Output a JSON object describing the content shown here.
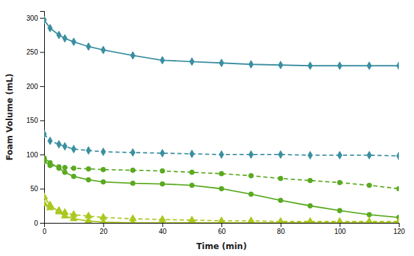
{
  "chart_data": {
    "type": "line",
    "xlabel": "Time (min)",
    "ylabel": "Foam Volume (mL)",
    "x": [
      0,
      2,
      5,
      7,
      10,
      15,
      20,
      30,
      40,
      50,
      60,
      70,
      80,
      90,
      100,
      110,
      120
    ],
    "series": [
      {
        "color": "#3a8fa0",
        "marker": "diamond",
        "line_style": "solid",
        "values": [
          297,
          285,
          275,
          270,
          265,
          258,
          253,
          245,
          238,
          236,
          234,
          232,
          231,
          230,
          230,
          230,
          230
        ]
      },
      {
        "color": "#3a8fa0",
        "marker": "diamond",
        "line_style": "dashed",
        "values": [
          130,
          120,
          115,
          112,
          108,
          106,
          104,
          103,
          102,
          101,
          100,
          100,
          100,
          99,
          99,
          99,
          98
        ]
      },
      {
        "color": "#5aaa20",
        "marker": "circle",
        "line_style": "solid",
        "values": [
          95,
          88,
          80,
          74,
          68,
          63,
          60,
          58,
          57,
          55,
          50,
          42,
          33,
          25,
          18,
          12,
          8
        ]
      },
      {
        "color": "#5aaa20",
        "marker": "circle",
        "line_style": "dashed",
        "values": [
          90,
          84,
          82,
          81,
          80,
          79,
          78,
          77,
          76,
          74,
          72,
          69,
          65,
          62,
          59,
          55,
          50
        ]
      },
      {
        "color": "#aac820",
        "marker": "triangle",
        "line_style": "solid",
        "values": [
          38,
          26,
          16,
          10,
          6,
          3,
          1,
          0,
          0,
          0,
          0,
          0,
          0,
          0,
          0,
          0,
          0
        ]
      },
      {
        "color": "#aac820",
        "marker": "triangle",
        "line_style": "dashed",
        "values": [
          28,
          22,
          18,
          15,
          12,
          10,
          8,
          6,
          5,
          4,
          3,
          3,
          2,
          2,
          2,
          2,
          2
        ]
      }
    ],
    "xlim": [
      0,
      120
    ],
    "ylim": [
      0,
      310
    ],
    "xticks": [
      0,
      20,
      40,
      60,
      80,
      100,
      120
    ],
    "yticks": [
      0,
      50,
      100,
      150,
      200,
      250,
      300
    ],
    "grid": false
  }
}
